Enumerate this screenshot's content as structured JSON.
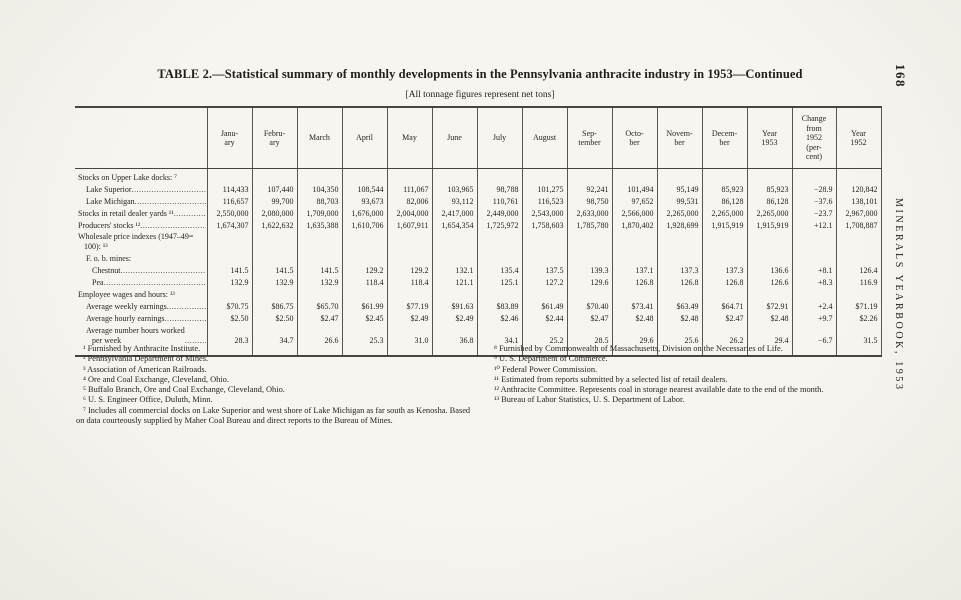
{
  "page": {
    "number": "168",
    "running_title": "MINERALS YEARBOOK, 1953"
  },
  "header": {
    "title": "TABLE 2.—Statistical summary of monthly developments in the Pennsylvania anthracite industry in 1953—Continued",
    "note": "[All tonnage figures represent net tons]"
  },
  "table": {
    "columns": [
      "Janu-\nary",
      "Febru-\nary",
      "March",
      "April",
      "May",
      "June",
      "July",
      "August",
      "Sep-\ntember",
      "Octo-\nber",
      "Novem-\nber",
      "Decem-\nber",
      "Year\n1953",
      "Change\nfrom\n1952\n(per-\ncent)",
      "Year\n1952"
    ],
    "rows": [
      {
        "label": "Stocks on Upper Lake docks: ⁷",
        "indent": 0,
        "leader": false,
        "cells": []
      },
      {
        "label": "Lake Superior",
        "indent": 1,
        "leader": true,
        "cells": [
          "114,433",
          "107,440",
          "104,350",
          "108,544",
          "111,067",
          "103,965",
          "98,788",
          "101,275",
          "92,241",
          "101,494",
          "95,149",
          "85,923",
          "85,923",
          "−28.9",
          "120,842"
        ]
      },
      {
        "label": "Lake Michigan",
        "indent": 1,
        "leader": true,
        "cells": [
          "116,657",
          "99,700",
          "88,703",
          "93,673",
          "82,006",
          "93,112",
          "110,761",
          "116,523",
          "98,750",
          "97,652",
          "99,531",
          "86,128",
          "86,128",
          "−37.6",
          "138,101"
        ]
      },
      {
        "label": "Stocks in retail dealer yards ¹¹",
        "indent": 0,
        "leader": true,
        "cells": [
          "2,550,000",
          "2,080,000",
          "1,709,000",
          "1,676,000",
          "2,004,000",
          "2,417,000",
          "2,449,000",
          "2,543,000",
          "2,633,000",
          "2,566,000",
          "2,265,000",
          "2,265,000",
          "2,265,000",
          "−23.7",
          "2,967,000"
        ]
      },
      {
        "label": "Producers' stocks ¹²",
        "indent": 0,
        "leader": true,
        "cells": [
          "1,674,307",
          "1,622,632",
          "1,635,388",
          "1,610,706",
          "1,607,911",
          "1,654,354",
          "1,725,972",
          "1,758,603",
          "1,785,780",
          "1,870,402",
          "1,928,699",
          "1,915,919",
          "1,915,919",
          "+12.1",
          "1,708,887"
        ]
      },
      {
        "label": "Wholesale price indexes (1947–49=\n   100): ¹³",
        "indent": 0,
        "leader": false,
        "cells": []
      },
      {
        "label": "F. o. b. mines:",
        "indent": 1,
        "leader": false,
        "cells": []
      },
      {
        "label": "Chestnut",
        "indent": 2,
        "leader": true,
        "cells": [
          "141.5",
          "141.5",
          "141.5",
          "129.2",
          "129.2",
          "132.1",
          "135.4",
          "137.5",
          "139.3",
          "137.1",
          "137.3",
          "137.3",
          "136.6",
          "+8.1",
          "126.4"
        ]
      },
      {
        "label": "Pea",
        "indent": 2,
        "leader": true,
        "cells": [
          "132.9",
          "132.9",
          "132.9",
          "118.4",
          "118.4",
          "121.1",
          "125.1",
          "127.2",
          "129.6",
          "126.8",
          "126.8",
          "126.8",
          "126.6",
          "+8.3",
          "116.9"
        ]
      },
      {
        "label": "Employee wages and hours: ¹³",
        "indent": 0,
        "leader": false,
        "cells": []
      },
      {
        "label": "Average weekly earnings",
        "indent": 1,
        "leader": true,
        "cells": [
          "$70.75",
          "$86.75",
          "$65.70",
          "$61.99",
          "$77.19",
          "$91.63",
          "$83.89",
          "$61.49",
          "$70.40",
          "$73.41",
          "$63.49",
          "$64.71",
          "$72.91",
          "+2.4",
          "$71.19"
        ]
      },
      {
        "label": "Average hourly earnings",
        "indent": 1,
        "leader": true,
        "cells": [
          "$2.50",
          "$2.50",
          "$2.47",
          "$2.45",
          "$2.49",
          "$2.49",
          "$2.46",
          "$2.44",
          "$2.47",
          "$2.48",
          "$2.48",
          "$2.47",
          "$2.48",
          "+9.7",
          "$2.26"
        ]
      },
      {
        "label": "Average number hours worked\n   per week",
        "indent": 1,
        "leader": true,
        "cells": [
          "28.3",
          "34.7",
          "26.6",
          "25.3",
          "31.0",
          "36.8",
          "34.1",
          "25.2",
          "28.5",
          "29.6",
          "25.6",
          "26.2",
          "29.4",
          "−6.7",
          "31.5"
        ]
      }
    ]
  },
  "footnotes": {
    "left": [
      "¹ Furnished by Anthracite Institute.",
      "² Pennsylvania Department of Mines.",
      "³ Association of American Railroads.",
      "⁴ Ore and Coal Exchange, Cleveland, Ohio.",
      "⁵ Buffalo Branch, Ore and Coal Exchange, Cleveland, Ohio.",
      "⁶ U. S. Engineer Office, Duluth, Minn.",
      "⁷ Includes all commercial docks on Lake Superior and west shore of Lake Michigan as far south as Kenosha.  Based on data courteously supplied by Maher Coal Bureau and direct reports to the Bureau of Mines."
    ],
    "right": [
      "⁸ Furnished by Commonwealth of Massachusetts, Division on the Necessaries of Life.",
      "⁹ U. S. Department of Commerce.",
      "¹⁰ Federal Power Commission.",
      "¹¹ Estimated from reports submitted by a selected list of retail dealers.",
      "¹² Anthracite Committee.  Represents coal in storage nearest available date to the end of the month.",
      "¹³ Bureau of Labor Statistics, U. S. Department of Labor."
    ]
  }
}
